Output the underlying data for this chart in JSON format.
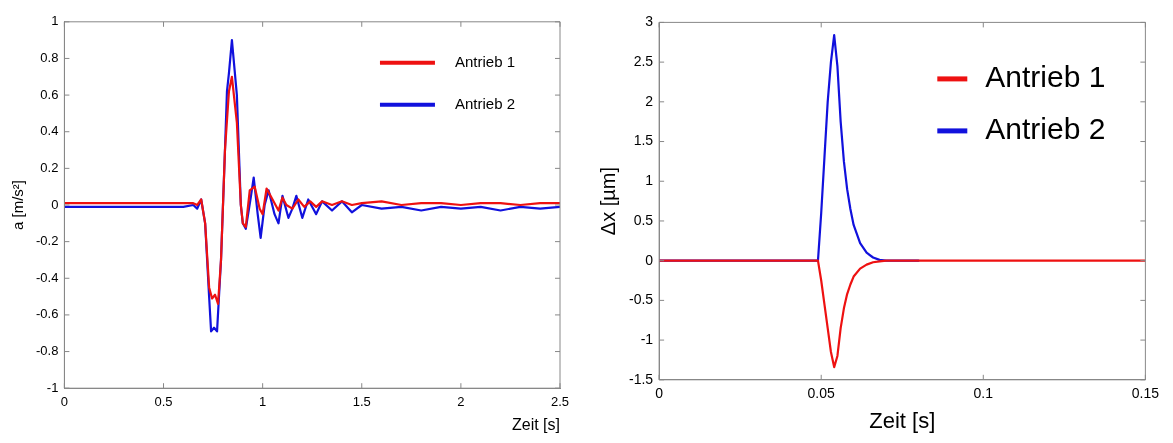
{
  "chart_data": [
    {
      "type": "line",
      "xlabel": "Zeit [s]",
      "ylabel": "a [m/s²]",
      "xlim": [
        0,
        2.5
      ],
      "xticks": [
        0,
        0.5,
        1,
        1.5,
        2,
        2.5
      ],
      "ylim": [
        -1,
        1
      ],
      "yticks": [
        -1,
        -0.8,
        -0.6,
        -0.4,
        -0.2,
        0,
        0.2,
        0.4,
        0.6,
        0.8,
        1
      ],
      "grid": false,
      "legend": "top right",
      "marker": "none",
      "line_style": "solid",
      "series": [
        {
          "name": "Antrieb 1",
          "color": "#ee1111",
          "x": [
            0,
            0.3,
            0.6,
            0.65,
            0.67,
            0.69,
            0.71,
            0.73,
            0.745,
            0.76,
            0.775,
            0.79,
            0.81,
            0.83,
            0.845,
            0.87,
            0.89,
            0.9,
            0.915,
            0.935,
            0.96,
            0.985,
            1.0,
            1.02,
            1.05,
            1.08,
            1.1,
            1.12,
            1.15,
            1.18,
            1.21,
            1.24,
            1.27,
            1.3,
            1.35,
            1.4,
            1.45,
            1.5,
            1.6,
            1.7,
            1.8,
            1.9,
            2.0,
            2.1,
            2.2,
            2.3,
            2.4,
            2.5
          ],
          "values": [
            0.01,
            0.01,
            0.01,
            0.01,
            0.0,
            0.03,
            -0.1,
            -0.45,
            -0.51,
            -0.49,
            -0.54,
            -0.3,
            0.3,
            0.62,
            0.7,
            0.45,
            0.0,
            -0.1,
            -0.12,
            0.08,
            0.1,
            -0.02,
            -0.05,
            0.09,
            0.03,
            -0.03,
            0.04,
            0.0,
            -0.02,
            0.03,
            -0.01,
            0.02,
            -0.01,
            0.02,
            0.0,
            0.02,
            0.0,
            0.01,
            0.02,
            0.0,
            0.01,
            0.01,
            0.0,
            0.01,
            0.01,
            0.0,
            0.01,
            0.01
          ]
        },
        {
          "name": "Antrieb 2",
          "color": "#1111dd",
          "x": [
            0,
            0.3,
            0.6,
            0.65,
            0.67,
            0.69,
            0.71,
            0.73,
            0.74,
            0.755,
            0.77,
            0.79,
            0.81,
            0.82,
            0.83,
            0.845,
            0.87,
            0.89,
            0.9,
            0.915,
            0.94,
            0.955,
            0.975,
            0.99,
            1.01,
            1.03,
            1.06,
            1.08,
            1.1,
            1.13,
            1.15,
            1.17,
            1.2,
            1.23,
            1.27,
            1.3,
            1.35,
            1.4,
            1.45,
            1.5,
            1.6,
            1.7,
            1.8,
            1.9,
            2.0,
            2.1,
            2.2,
            2.3,
            2.4,
            2.5
          ],
          "values": [
            -0.01,
            -0.01,
            -0.01,
            0.0,
            -0.02,
            0.03,
            -0.1,
            -0.5,
            -0.69,
            -0.67,
            -0.69,
            -0.3,
            0.3,
            0.62,
            0.72,
            0.9,
            0.6,
            0.0,
            -0.1,
            -0.13,
            0.04,
            0.15,
            -0.05,
            -0.18,
            0.0,
            0.08,
            -0.05,
            -0.1,
            0.05,
            -0.07,
            -0.02,
            0.05,
            -0.07,
            0.03,
            -0.05,
            0.02,
            -0.03,
            0.02,
            -0.04,
            0.0,
            -0.02,
            -0.01,
            -0.03,
            -0.01,
            -0.02,
            -0.01,
            -0.03,
            -0.01,
            -0.02,
            -0.01
          ]
        }
      ]
    },
    {
      "type": "line",
      "xlabel": "Zeit [s]",
      "ylabel": "Δx [µm]",
      "xlim": [
        0,
        0.15
      ],
      "xticks": [
        0,
        0.05,
        0.1,
        0.15
      ],
      "ylim": [
        -1.5,
        3
      ],
      "yticks": [
        -1.5,
        -1,
        -0.5,
        0,
        0.5,
        1,
        1.5,
        2,
        2.5,
        3
      ],
      "grid": false,
      "legend": "top right",
      "marker": "none",
      "line_style": "solid",
      "series": [
        {
          "name": "Antrieb 1",
          "color": "#ee1111",
          "x": [
            0,
            0.049,
            0.05,
            0.051,
            0.052,
            0.053,
            0.054,
            0.055,
            0.056,
            0.057,
            0.058,
            0.059,
            0.06,
            0.062,
            0.064,
            0.066,
            0.068,
            0.07,
            0.08,
            0.1,
            0.15
          ],
          "values": [
            0,
            0,
            -0.25,
            -0.55,
            -0.85,
            -1.15,
            -1.34,
            -1.2,
            -0.85,
            -0.6,
            -0.42,
            -0.3,
            -0.2,
            -0.1,
            -0.05,
            -0.02,
            -0.01,
            0,
            0,
            0,
            0
          ]
        },
        {
          "name": "Antrieb 2",
          "color": "#1111dd",
          "x": [
            0,
            0.049,
            0.05,
            0.051,
            0.052,
            0.053,
            0.054,
            0.055,
            0.056,
            0.057,
            0.058,
            0.059,
            0.06,
            0.062,
            0.064,
            0.066,
            0.068,
            0.07,
            0.08
          ],
          "values": [
            0,
            0,
            0.6,
            1.3,
            2.0,
            2.5,
            2.84,
            2.45,
            1.75,
            1.25,
            0.9,
            0.65,
            0.45,
            0.22,
            0.1,
            0.04,
            0.01,
            0,
            0
          ]
        }
      ]
    }
  ]
}
